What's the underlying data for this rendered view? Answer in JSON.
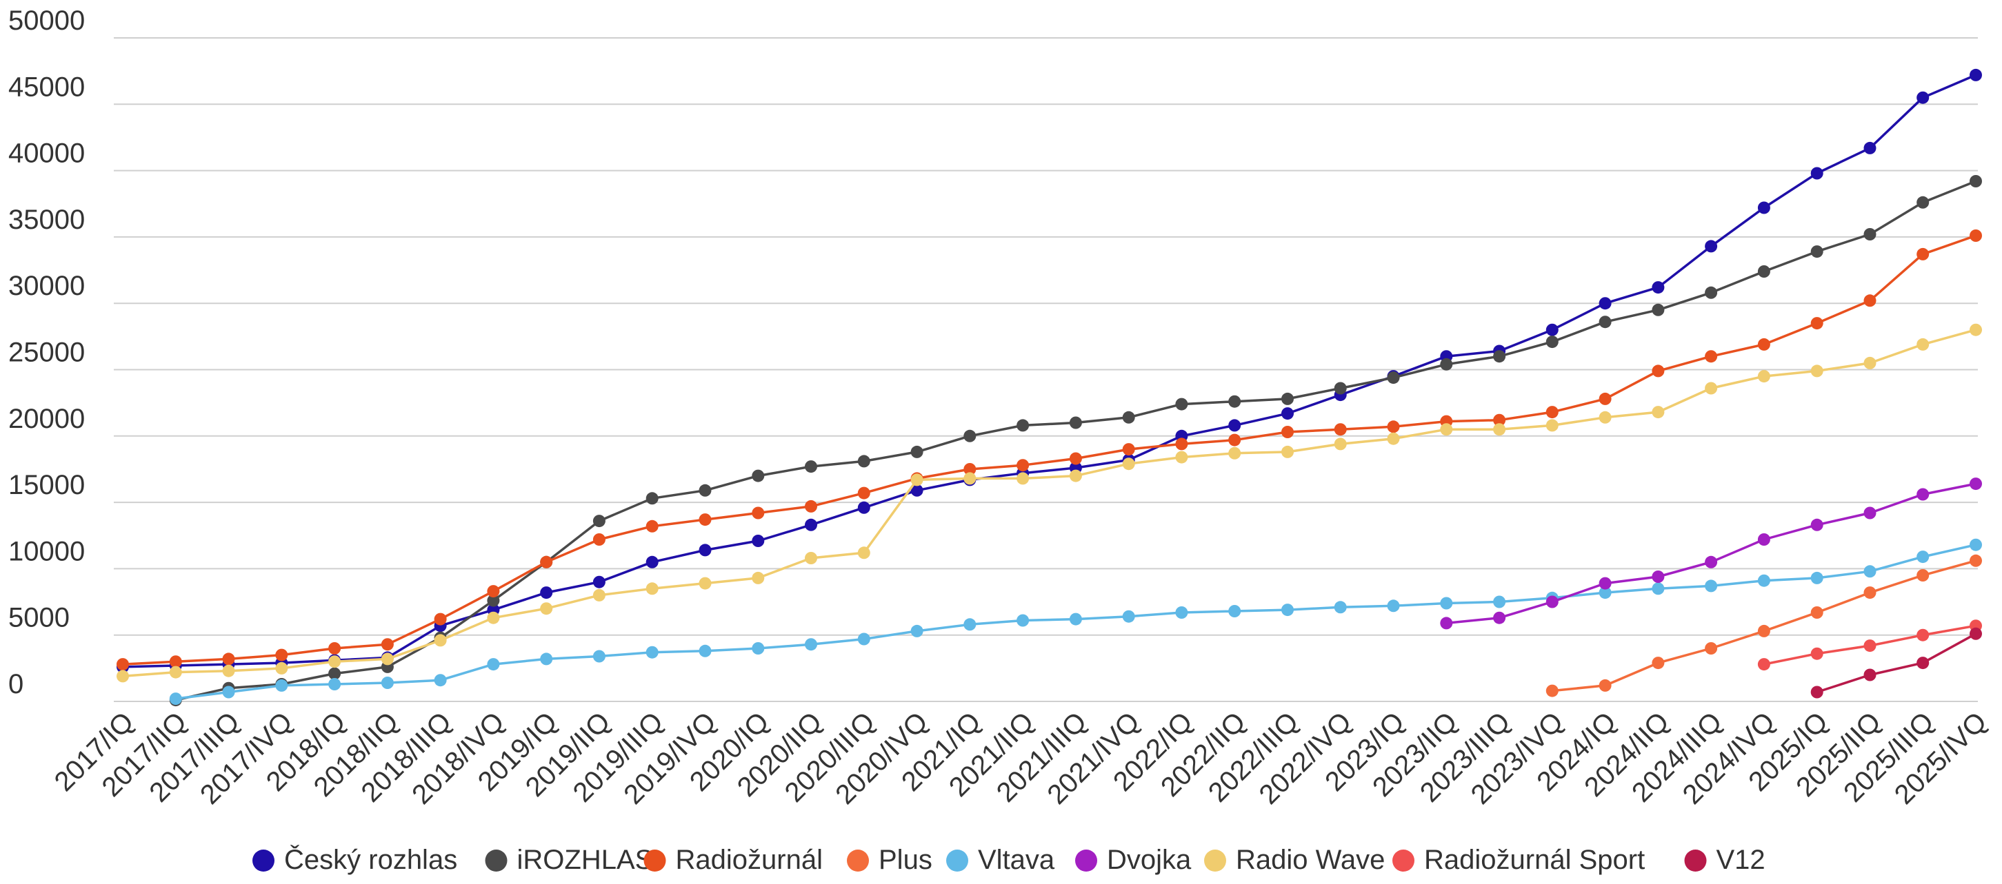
{
  "chart_data": {
    "type": "line",
    "title": "",
    "xlabel": "",
    "ylabel": "",
    "ylim": [
      0,
      50000
    ],
    "yticks": [
      0,
      5000,
      10000,
      15000,
      20000,
      25000,
      30000,
      35000,
      40000,
      45000,
      50000
    ],
    "grid": true,
    "legend_position": "bottom",
    "categories": [
      "2017/IQ",
      "2017/IIQ",
      "2017/IIIQ",
      "2017/IVQ",
      "2018/IQ",
      "2018/IIQ",
      "2018/IIIQ",
      "2018/IVQ",
      "2019/IQ",
      "2019/IIQ",
      "2019/IIIQ",
      "2019/IVQ",
      "2020/IQ",
      "2020/IIQ",
      "2020/IIIQ",
      "2020/IVQ",
      "2021/IQ",
      "2021/IIQ",
      "2021/IIIQ",
      "2021/IVQ",
      "2022/IQ",
      "2022/IIQ",
      "2022/IIIQ",
      "2022/IVQ",
      "2023/IQ",
      "2023/IIQ",
      "2023/IIIQ",
      "2023/IVQ",
      "2024/IQ",
      "2024/IIQ",
      "2024/IIIQ",
      "2024/IVQ",
      "2025/IQ",
      "2025/IIQ",
      "2025/IIIQ",
      "2025/IVQ"
    ],
    "series": [
      {
        "name": "Český rozhlas",
        "color": "#1f0fa8",
        "values": [
          2600,
          2700,
          2800,
          2900,
          3100,
          3300,
          5700,
          6900,
          8200,
          9000,
          10500,
          11400,
          12100,
          13300,
          14600,
          15900,
          16700,
          17200,
          17600,
          18200,
          20000,
          20800,
          21700,
          23100,
          24500,
          26000,
          26400,
          28000,
          30000,
          31200,
          34300,
          37200,
          39800,
          41700,
          45500,
          47200
        ]
      },
      {
        "name": "iROZHLAS",
        "color": "#4a4a4a",
        "values": [
          null,
          100,
          1000,
          1300,
          2100,
          2600,
          4800,
          7600,
          10500,
          13600,
          15300,
          15900,
          17000,
          17700,
          18100,
          18800,
          20000,
          20800,
          21000,
          21400,
          22400,
          22600,
          22800,
          23600,
          24400,
          25400,
          26000,
          27100,
          28600,
          29500,
          30800,
          32400,
          33900,
          35200,
          37600,
          39200
        ]
      },
      {
        "name": "Radiožurnál",
        "color": "#e8501e",
        "values": [
          2800,
          3000,
          3200,
          3500,
          4000,
          4300,
          6200,
          8300,
          10500,
          12200,
          13200,
          13700,
          14200,
          14700,
          15700,
          16800,
          17500,
          17800,
          18300,
          19000,
          19400,
          19700,
          20300,
          20500,
          20700,
          21100,
          21200,
          21800,
          22800,
          24900,
          26000,
          26900,
          28500,
          30200,
          33700,
          35100
        ]
      },
      {
        "name": "Plus",
        "color": "#f36c3b",
        "values": [
          null,
          null,
          null,
          null,
          null,
          null,
          null,
          null,
          null,
          null,
          null,
          null,
          null,
          null,
          null,
          null,
          null,
          null,
          null,
          null,
          null,
          null,
          null,
          null,
          null,
          null,
          null,
          800,
          1200,
          2900,
          4000,
          5300,
          6700,
          8200,
          9500,
          10600
        ]
      },
      {
        "name": "Vltava",
        "color": "#5fb8e6",
        "values": [
          null,
          200,
          700,
          1200,
          1300,
          1400,
          1600,
          2800,
          3200,
          3400,
          3700,
          3800,
          4000,
          4300,
          4700,
          5300,
          5800,
          6100,
          6200,
          6400,
          6700,
          6800,
          6900,
          7100,
          7200,
          7400,
          7500,
          7800,
          8200,
          8500,
          8700,
          9100,
          9300,
          9800,
          10900,
          11800
        ]
      },
      {
        "name": "Dvojka",
        "color": "#a21fc2",
        "values": [
          null,
          null,
          null,
          null,
          null,
          null,
          null,
          null,
          null,
          null,
          null,
          null,
          null,
          null,
          null,
          null,
          null,
          null,
          null,
          null,
          null,
          null,
          null,
          null,
          null,
          5900,
          6300,
          7500,
          8900,
          9400,
          10500,
          12200,
          13300,
          14200,
          15600,
          16400
        ]
      },
      {
        "name": "Radio Wave",
        "color": "#f0cc6e",
        "values": [
          1900,
          2200,
          2300,
          2500,
          3000,
          3200,
          4600,
          6300,
          7000,
          8000,
          8500,
          8900,
          9300,
          10800,
          11200,
          16700,
          16800,
          16800,
          17000,
          17900,
          18400,
          18700,
          18800,
          19400,
          19800,
          20500,
          20500,
          20800,
          21400,
          21800,
          23600,
          24500,
          24900,
          25500,
          26900,
          28000
        ]
      },
      {
        "name": "Radiožurnál Sport",
        "color": "#f05050",
        "values": [
          null,
          null,
          null,
          null,
          null,
          null,
          null,
          null,
          null,
          null,
          null,
          null,
          null,
          null,
          null,
          null,
          null,
          null,
          null,
          null,
          null,
          null,
          null,
          null,
          null,
          null,
          null,
          null,
          null,
          null,
          null,
          2800,
          3600,
          4200,
          5000,
          5700
        ]
      },
      {
        "name": "V12",
        "color": "#b81a4a",
        "values": [
          null,
          null,
          null,
          null,
          null,
          null,
          null,
          null,
          null,
          null,
          null,
          null,
          null,
          null,
          null,
          null,
          null,
          null,
          null,
          null,
          null,
          null,
          null,
          null,
          null,
          null,
          null,
          null,
          null,
          null,
          null,
          null,
          700,
          2000,
          2900,
          5100
        ]
      }
    ]
  }
}
